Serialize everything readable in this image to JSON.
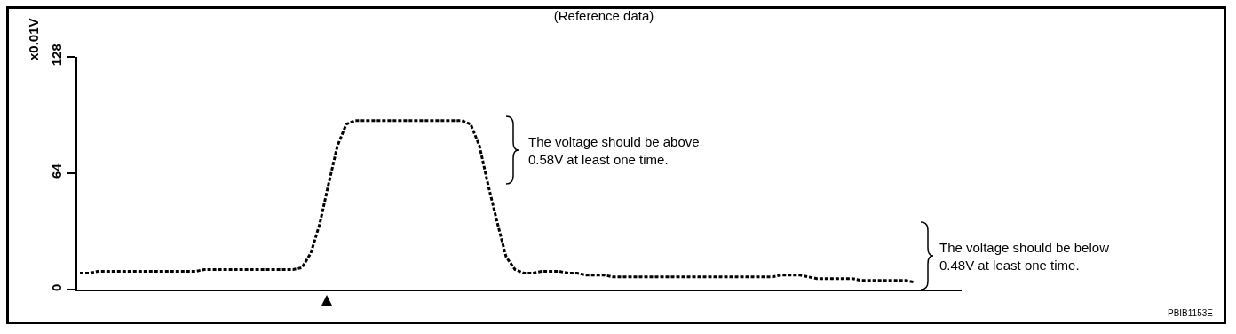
{
  "chart_data": {
    "type": "line",
    "title": "(Reference data)",
    "ylabel": "x0.01V",
    "categories": [
      null,
      null,
      null,
      null,
      null,
      null,
      null,
      null,
      null,
      null,
      null,
      null,
      null,
      null,
      null,
      null,
      null,
      null,
      null,
      null,
      null,
      null,
      null,
      null,
      null,
      null,
      null,
      null,
      null,
      null,
      null,
      null,
      null,
      null,
      null,
      null,
      null,
      null,
      null,
      null,
      null,
      null,
      null,
      null,
      null,
      null,
      null,
      null,
      null,
      null,
      null,
      null,
      null,
      null,
      null,
      null,
      null,
      null,
      null,
      null,
      null,
      null,
      null,
      null,
      null,
      null,
      null,
      null,
      null,
      null,
      null,
      null,
      null,
      null,
      null,
      null,
      null,
      null,
      null,
      null,
      null,
      null,
      null,
      null,
      null,
      null,
      null,
      null,
      null,
      null,
      null,
      null,
      null,
      null,
      null
    ],
    "series": [
      {
        "color": "#000000",
        "values": [
          9,
          9,
          10,
          10,
          10,
          10,
          10,
          10,
          10,
          10,
          10,
          10,
          10,
          10,
          11,
          11,
          11,
          11,
          11,
          11,
          11,
          11,
          11,
          11,
          11,
          12,
          20,
          36,
          58,
          79,
          91,
          93,
          93,
          93,
          93,
          93,
          93,
          93,
          93,
          93,
          93,
          93,
          93,
          93,
          91,
          79,
          57,
          37,
          18,
          11,
          9,
          9,
          10,
          10,
          10,
          9,
          9,
          8,
          8,
          8,
          7,
          7,
          7,
          7,
          7,
          7,
          7,
          7,
          7,
          7,
          7,
          7,
          7,
          7,
          7,
          7,
          7,
          7,
          7,
          8,
          8,
          8,
          7,
          6,
          6,
          6,
          6,
          6,
          5,
          5,
          5,
          5,
          5,
          5,
          4
        ]
      }
    ],
    "ylim": [
      0,
      128
    ],
    "yticks": [
      0,
      64,
      128
    ],
    "grid": false,
    "marker": "none",
    "line_style": "dashed",
    "annotations": [
      "The voltage should be above\n0.58V at least one time.",
      "The voltage should be below\n0.48V at least one time.",
      "PBIB1153E"
    ]
  }
}
